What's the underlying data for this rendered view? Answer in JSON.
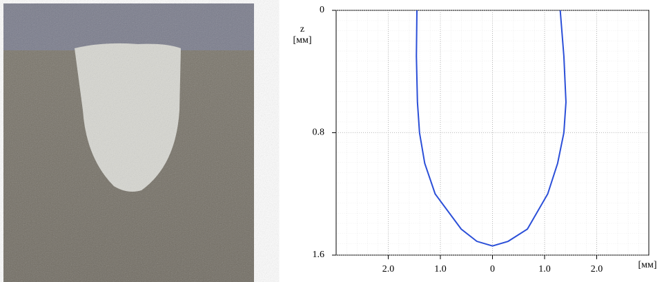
{
  "chart_data": {
    "type": "line",
    "x": [
      -1.45,
      -1.46,
      -1.44,
      -1.4,
      -1.3,
      -1.1,
      -0.6,
      -0.3,
      0,
      0.3,
      0.67,
      1.06,
      1.25,
      1.37,
      1.41,
      1.37,
      1.3
    ],
    "values": [
      0,
      0.3,
      0.6,
      0.8,
      1.0,
      1.2,
      1.43,
      1.51,
      1.54,
      1.51,
      1.43,
      1.2,
      1.0,
      0.8,
      0.6,
      0.3,
      0
    ],
    "color": "#2b4fd8",
    "xlim": [
      -3,
      3
    ],
    "xticks": [
      {
        "value": -2,
        "label": "2.0"
      },
      {
        "value": -1,
        "label": "1.0"
      },
      0,
      {
        "value": 1,
        "label": "1.0"
      },
      {
        "value": 2,
        "label": "2.0"
      }
    ],
    "ylim": [
      0,
      1.6
    ],
    "yticks": [
      0,
      0.8,
      1.6
    ],
    "y_inverted": true,
    "ylabel": [
      "z",
      "[мм]"
    ],
    "xlabel": "[мм]",
    "grid": true
  }
}
